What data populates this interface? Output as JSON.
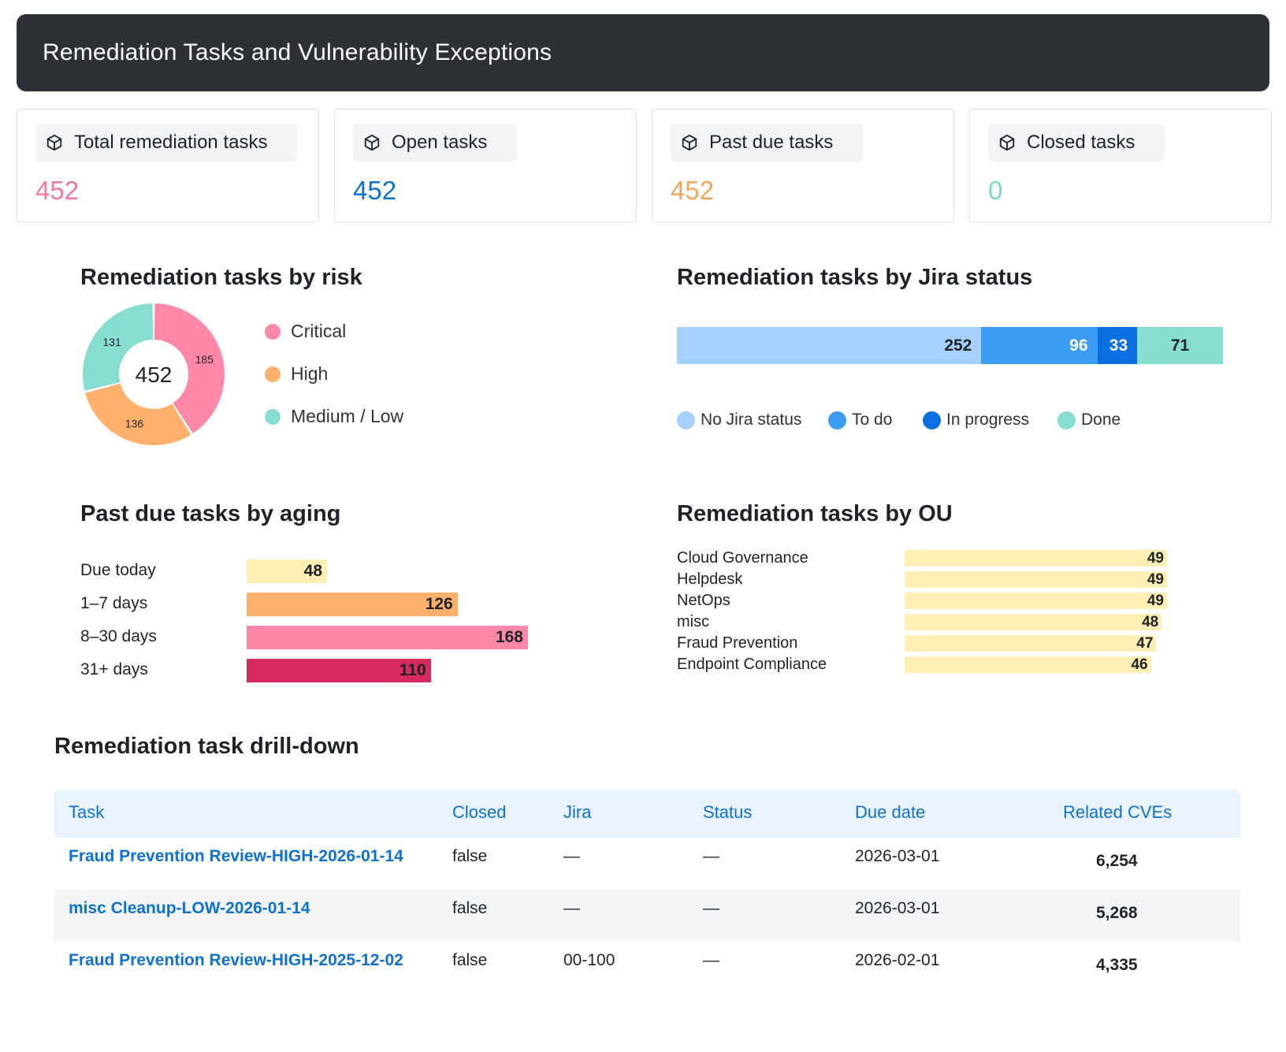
{
  "title": "Remediation Tasks and Vulnerability Exceptions",
  "kpis": [
    {
      "label": "Total remediation tasks",
      "value": "452",
      "color": "#f07a9c"
    },
    {
      "label": "Open tasks",
      "value": "452",
      "color": "#0e70d1"
    },
    {
      "label": "Past due tasks",
      "value": "452",
      "color": "#f2a55b"
    },
    {
      "label": "Closed tasks",
      "value": "0",
      "color": "#7dd8cc"
    }
  ],
  "risk": {
    "title": "Remediation tasks by risk",
    "total": "452",
    "legend": [
      "Critical",
      "High",
      "Medium / Low"
    ],
    "colors": [
      "#ff88a8",
      "#ffb06a",
      "#86ded0"
    ]
  },
  "jira": {
    "title": "Remediation tasks by Jira status",
    "legend": [
      "No Jira status",
      "To do",
      "In progress",
      "Done"
    ],
    "colors": [
      "#a6d0fd",
      "#3b9df4",
      "#0a6fe0",
      "#86ded0"
    ]
  },
  "aging": {
    "title": "Past due tasks by aging",
    "colors": [
      "#fdeeb3",
      "#ffb06a",
      "#ff88a8",
      "#d72a5e"
    ]
  },
  "ou": {
    "title": "Remediation tasks by OU",
    "color": "#fdeeb3"
  },
  "chart_data": [
    {
      "type": "pie",
      "title": "Remediation tasks by risk",
      "categories": [
        "Critical",
        "High",
        "Medium / Low"
      ],
      "values": [
        185,
        136,
        131
      ]
    },
    {
      "type": "bar",
      "title": "Remediation tasks by Jira status",
      "categories": [
        "No Jira status",
        "To do",
        "In progress",
        "Done"
      ],
      "values": [
        252,
        96,
        33,
        71
      ]
    },
    {
      "type": "bar",
      "title": "Past due tasks by aging",
      "categories": [
        "Due today",
        "1–7 days",
        "8–30 days",
        "31+ days"
      ],
      "values": [
        48,
        126,
        168,
        110
      ]
    },
    {
      "type": "bar",
      "title": "Remediation tasks by OU",
      "categories": [
        "Cloud Governance",
        "Helpdesk",
        "NetOps",
        "misc",
        "Fraud Prevention",
        "Endpoint Compliance"
      ],
      "values": [
        49,
        49,
        49,
        48,
        47,
        46
      ]
    }
  ],
  "drilldown": {
    "title": "Remediation task drill-down",
    "columns": [
      "Task",
      "Closed",
      "Jira",
      "Status",
      "Due date",
      "Related CVEs"
    ],
    "rows": [
      {
        "task": "Fraud Prevention Review-HIGH-2026-01-14",
        "closed": "false",
        "jira": "—",
        "status": "—",
        "due": "2026-03-01",
        "cves": "6,254"
      },
      {
        "task": "misc Cleanup-LOW-2026-01-14",
        "closed": "false",
        "jira": "—",
        "status": "—",
        "due": "2026-03-01",
        "cves": "5,268"
      },
      {
        "task": "Fraud Prevention Review-HIGH-2025-12-02",
        "closed": "false",
        "jira": "00-100",
        "status": "—",
        "due": "2026-02-01",
        "cves": "4,335"
      }
    ]
  }
}
